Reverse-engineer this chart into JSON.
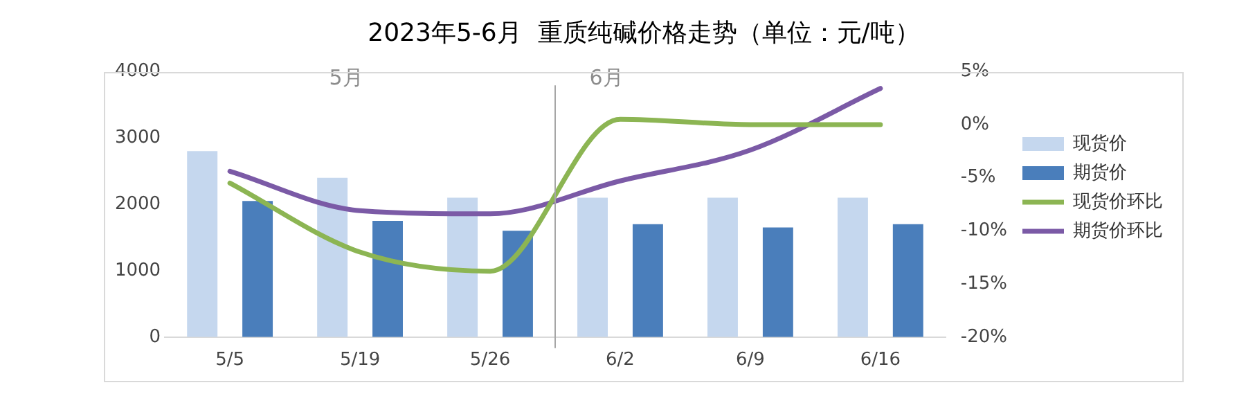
{
  "chart_data": {
    "type": "bar",
    "title": "2023年5-6月  重质纯碱价格走势（单位：元/吨）",
    "categories": [
      "5/5",
      "5/19",
      "5/26",
      "6/2",
      "6/9",
      "6/16"
    ],
    "series": [
      {
        "name": "现货价",
        "color": "#c5d7ee",
        "values": [
          2800,
          2400,
          2100,
          2100,
          2100,
          2100
        ]
      },
      {
        "name": "期货价",
        "color": "#4a7ebb",
        "values": [
          2050,
          1750,
          1600,
          1700,
          1650,
          1700
        ]
      },
      {
        "name": "现货价环比",
        "type": "line",
        "axis": "y2",
        "color": "#8cb553",
        "values": [
          -5.5,
          -12,
          -13.8,
          0.5,
          0,
          0
        ]
      },
      {
        "name": "期货价环比",
        "type": "line",
        "axis": "y2",
        "color": "#7b5aa6",
        "values": [
          -4.4,
          -8.1,
          -8.4,
          -5.3,
          -2.4,
          3.4
        ]
      }
    ],
    "ylim": [
      0,
      4000
    ],
    "yticks": [
      0,
      1000,
      2000,
      3000,
      4000
    ],
    "y2lim": [
      -20,
      5
    ],
    "y2ticks": [
      {
        "value": -20,
        "label": "-20%"
      },
      {
        "value": -15,
        "label": "-15%"
      },
      {
        "value": -10,
        "label": "-10%"
      },
      {
        "value": -5,
        "label": "-5%"
      },
      {
        "value": 0,
        "label": "0%"
      },
      {
        "value": 5,
        "label": "5%"
      }
    ],
    "annotations": [
      "5月",
      "6月"
    ],
    "grid": false,
    "legend": "right",
    "marker": "none",
    "line_style": "solid"
  }
}
